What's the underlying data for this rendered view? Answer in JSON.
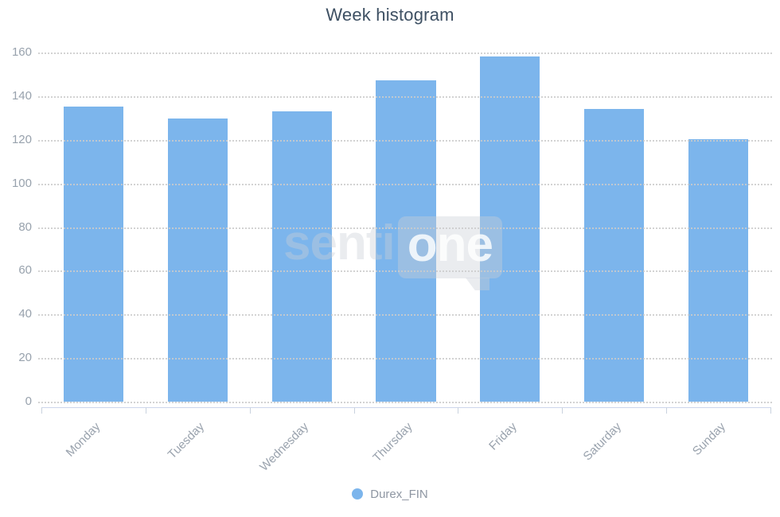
{
  "chart_data": {
    "type": "bar",
    "title": "Week histogram",
    "categories": [
      "Monday",
      "Tuesday",
      "Wednesday",
      "Thursday",
      "Friday",
      "Saturday",
      "Sunday"
    ],
    "series": [
      {
        "name": "Durex_FIN",
        "color": "#7cb5ec",
        "values": [
          135.5,
          130,
          133.5,
          147.5,
          158.5,
          134.5,
          120.5
        ]
      }
    ],
    "xlabel": "",
    "ylabel": "",
    "ylim": [
      0,
      160
    ],
    "yticks": [
      0,
      20,
      40,
      60,
      80,
      100,
      120,
      140,
      160
    ],
    "grid": "horizontal-dotted",
    "grid_on": true,
    "legend_position": "bottom-center",
    "x_label_rotation": -45
  },
  "legend": {
    "label": "Durex_FIN",
    "dot_color": "#7cb5ec"
  },
  "watermark": {
    "text_left": "senti",
    "text_badge": "one"
  },
  "colors": {
    "bar": "#7cb5ec",
    "title_text": "#3e5063",
    "axis_label_text": "#99a2ad",
    "gridline": "#cccccc",
    "axis_line": "#ccd6eb"
  }
}
